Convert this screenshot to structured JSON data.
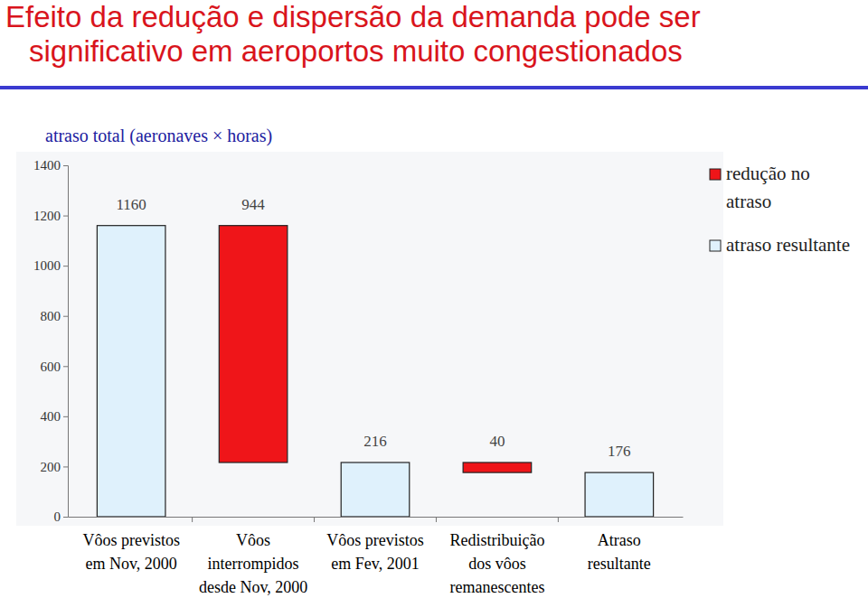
{
  "chart_data": {
    "type": "waterfall",
    "title": "Efeito da redução e dispersão da demanda pode ser\nsignificativo em aeroportos muito congestionados",
    "y_label": "atraso total (aeronaves × horas)",
    "categories": [
      "Vôos previstos\nem Nov, 2000",
      "Vôos\ninterrompidos\ndesde Nov, 2000",
      "Vôos previstos\nem Fev, 2001",
      "Redistribuição\ndos vôos\nremanescentes",
      "Atraso\nresultante"
    ],
    "series": [
      {
        "name": "redução no atraso",
        "color": "#ef1519",
        "values": [
          null,
          944,
          null,
          40,
          null
        ]
      },
      {
        "name": "atraso resultante",
        "color": "#dff1fc",
        "values": [
          1160,
          null,
          216,
          null,
          176
        ]
      }
    ],
    "ylim": [
      0,
      1400
    ],
    "yticks": [
      0,
      200,
      400,
      600,
      800,
      1000,
      1200,
      1400
    ],
    "grid": false,
    "legend": "right",
    "data_labels": true
  }
}
